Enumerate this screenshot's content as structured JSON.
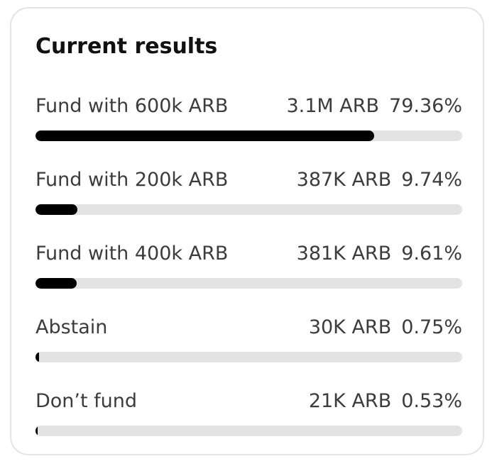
{
  "title": "Current results",
  "options": [
    {
      "label": "Fund with 600k ARB",
      "amount": "3.1M ARB",
      "percent_text": "79.36%",
      "percent": 79.36
    },
    {
      "label": "Fund with 200k ARB",
      "amount": "387K ARB",
      "percent_text": "9.74%",
      "percent": 9.74
    },
    {
      "label": "Fund with 400k ARB",
      "amount": "381K ARB",
      "percent_text": "9.61%",
      "percent": 9.61
    },
    {
      "label": "Abstain",
      "amount": "30K ARB",
      "percent_text": "0.75%",
      "percent": 0.75
    },
    {
      "label": "Don’t fund",
      "amount": "21K ARB",
      "percent_text": "0.53%",
      "percent": 0.53
    }
  ],
  "colors": {
    "bar_fill": "#000000",
    "bar_track": "#e3e3e3",
    "card_border": "#e4e4e4"
  }
}
